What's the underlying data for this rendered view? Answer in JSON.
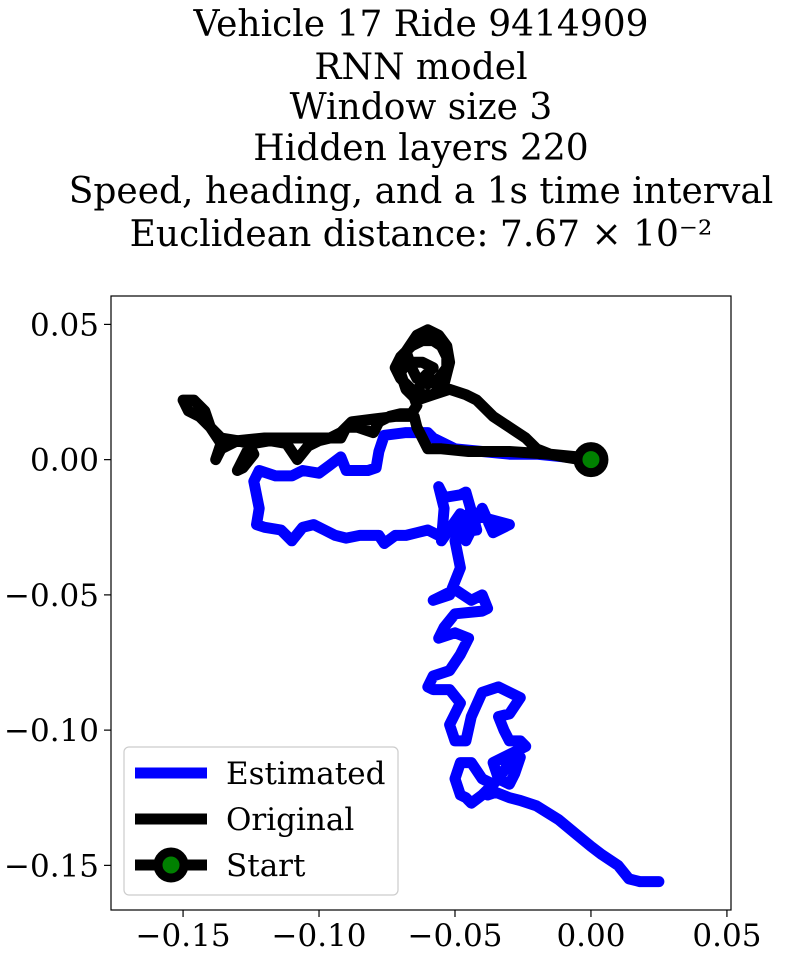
{
  "chart_data": {
    "type": "line",
    "title_lines": [
      "Vehicle 17 Ride 9414909",
      "RNN model",
      "Window size 3",
      "Hidden layers 220",
      "Speed, heading, and a 1s time interval",
      "Euclidean distance: 7.67 × 10⁻²"
    ],
    "xlabel": "",
    "ylabel": "",
    "xlim": [
      -0.1765,
      0.0515
    ],
    "ylim": [
      -0.1665,
      0.0605
    ],
    "xticks": [
      -0.15,
      -0.1,
      -0.05,
      0.0,
      0.05
    ],
    "xtick_labels": [
      "−0.15",
      "−0.10",
      "−0.05",
      "0.00",
      "0.05"
    ],
    "yticks": [
      0.05,
      0.0,
      -0.05,
      -0.1,
      -0.15
    ],
    "ytick_labels": [
      "0.05",
      "0.00",
      "−0.05",
      "−0.10",
      "−0.15"
    ],
    "grid": false,
    "legend_position": "lower-left",
    "series": [
      {
        "name": "Estimated",
        "color": "#0000ff",
        "points": [
          [
            0.0,
            0.0
          ],
          [
            -0.01,
            0.001
          ],
          [
            -0.02,
            0.002
          ],
          [
            -0.03,
            0.002
          ],
          [
            -0.04,
            0.003
          ],
          [
            -0.05,
            0.004
          ],
          [
            -0.058,
            0.008
          ],
          [
            -0.06,
            0.01
          ],
          [
            -0.068,
            0.01
          ],
          [
            -0.076,
            0.009
          ],
          [
            -0.078,
            0.003
          ],
          [
            -0.079,
            -0.003
          ],
          [
            -0.082,
            -0.004
          ],
          [
            -0.09,
            -0.004
          ],
          [
            -0.092,
            0.001
          ],
          [
            -0.096,
            -0.002
          ],
          [
            -0.1,
            -0.005
          ],
          [
            -0.106,
            -0.004
          ],
          [
            -0.11,
            -0.006
          ],
          [
            -0.116,
            -0.006
          ],
          [
            -0.122,
            -0.004
          ],
          [
            -0.124,
            -0.008
          ],
          [
            -0.122,
            -0.018
          ],
          [
            -0.123,
            -0.024
          ],
          [
            -0.12,
            -0.025
          ],
          [
            -0.114,
            -0.026
          ],
          [
            -0.11,
            -0.03
          ],
          [
            -0.106,
            -0.025
          ],
          [
            -0.102,
            -0.024
          ],
          [
            -0.098,
            -0.026
          ],
          [
            -0.094,
            -0.028
          ],
          [
            -0.09,
            -0.029
          ],
          [
            -0.085,
            -0.028
          ],
          [
            -0.078,
            -0.028
          ],
          [
            -0.076,
            -0.031
          ],
          [
            -0.072,
            -0.028
          ],
          [
            -0.068,
            -0.028
          ],
          [
            -0.064,
            -0.027
          ],
          [
            -0.06,
            -0.026
          ],
          [
            -0.056,
            -0.028
          ],
          [
            -0.052,
            -0.026
          ],
          [
            -0.048,
            -0.027
          ],
          [
            -0.042,
            -0.026
          ],
          [
            -0.046,
            -0.012
          ],
          [
            -0.048,
            -0.013
          ],
          [
            -0.054,
            -0.014
          ],
          [
            -0.056,
            -0.01
          ],
          [
            -0.054,
            -0.018
          ],
          [
            -0.055,
            -0.03
          ],
          [
            -0.048,
            -0.02
          ],
          [
            -0.046,
            -0.03
          ],
          [
            -0.04,
            -0.018
          ],
          [
            -0.036,
            -0.027
          ],
          [
            -0.03,
            -0.024
          ],
          [
            -0.045,
            -0.02
          ],
          [
            -0.05,
            -0.03
          ],
          [
            -0.048,
            -0.04
          ],
          [
            -0.05,
            -0.045
          ],
          [
            -0.052,
            -0.05
          ],
          [
            -0.058,
            -0.052
          ],
          [
            -0.05,
            -0.048
          ],
          [
            -0.044,
            -0.052
          ],
          [
            -0.04,
            -0.05
          ],
          [
            -0.038,
            -0.055
          ],
          [
            -0.04,
            -0.056
          ],
          [
            -0.05,
            -0.057
          ],
          [
            -0.054,
            -0.062
          ],
          [
            -0.056,
            -0.066
          ],
          [
            -0.05,
            -0.064
          ],
          [
            -0.045,
            -0.066
          ],
          [
            -0.048,
            -0.072
          ],
          [
            -0.052,
            -0.078
          ],
          [
            -0.058,
            -0.08
          ],
          [
            -0.06,
            -0.084
          ],
          [
            -0.058,
            -0.085
          ],
          [
            -0.052,
            -0.085
          ],
          [
            -0.048,
            -0.09
          ],
          [
            -0.05,
            -0.094
          ],
          [
            -0.052,
            -0.098
          ],
          [
            -0.05,
            -0.104
          ],
          [
            -0.046,
            -0.104
          ],
          [
            -0.044,
            -0.095
          ],
          [
            -0.04,
            -0.086
          ],
          [
            -0.034,
            -0.084
          ],
          [
            -0.026,
            -0.088
          ],
          [
            -0.03,
            -0.094
          ],
          [
            -0.034,
            -0.095
          ],
          [
            -0.032,
            -0.1
          ],
          [
            -0.03,
            -0.104
          ],
          [
            -0.026,
            -0.104
          ],
          [
            -0.024,
            -0.106
          ],
          [
            -0.028,
            -0.108
          ],
          [
            -0.036,
            -0.112
          ],
          [
            -0.034,
            -0.118
          ],
          [
            -0.03,
            -0.12
          ],
          [
            -0.028,
            -0.116
          ],
          [
            -0.026,
            -0.11
          ],
          [
            -0.03,
            -0.112
          ],
          [
            -0.034,
            -0.118
          ],
          [
            -0.04,
            -0.124
          ],
          [
            -0.044,
            -0.127
          ],
          [
            -0.046,
            -0.125
          ],
          [
            -0.048,
            -0.124
          ],
          [
            -0.05,
            -0.118
          ],
          [
            -0.048,
            -0.112
          ],
          [
            -0.044,
            -0.112
          ],
          [
            -0.04,
            -0.118
          ],
          [
            -0.036,
            -0.12
          ],
          [
            -0.038,
            -0.124
          ],
          [
            -0.035,
            -0.123
          ],
          [
            -0.03,
            -0.125
          ],
          [
            -0.026,
            -0.126
          ],
          [
            -0.02,
            -0.128
          ],
          [
            -0.012,
            -0.133
          ],
          [
            -0.006,
            -0.138
          ],
          [
            0.0,
            -0.143
          ],
          [
            0.004,
            -0.146
          ],
          [
            0.01,
            -0.15
          ],
          [
            0.014,
            -0.155
          ],
          [
            0.018,
            -0.156
          ],
          [
            0.025,
            -0.156
          ]
        ]
      },
      {
        "name": "Original",
        "color": "#000000",
        "points": [
          [
            0.0,
            0.0
          ],
          [
            -0.005,
            0.001
          ],
          [
            -0.015,
            0.002
          ],
          [
            -0.03,
            0.003
          ],
          [
            -0.045,
            0.003
          ],
          [
            -0.055,
            0.004
          ],
          [
            -0.06,
            0.004
          ],
          [
            -0.062,
            0.008
          ],
          [
            -0.064,
            0.012
          ],
          [
            -0.065,
            0.016
          ],
          [
            -0.072,
            0.016
          ],
          [
            -0.08,
            0.015
          ],
          [
            -0.088,
            0.014
          ],
          [
            -0.092,
            0.01
          ],
          [
            -0.096,
            0.008
          ],
          [
            -0.1,
            0.007
          ],
          [
            -0.104,
            0.005
          ],
          [
            -0.108,
            0.0
          ],
          [
            -0.112,
            0.006
          ],
          [
            -0.118,
            0.007
          ],
          [
            -0.124,
            0.006
          ],
          [
            -0.126,
            0.004
          ],
          [
            -0.128,
            0.0
          ],
          [
            -0.13,
            -0.004
          ],
          [
            -0.128,
            -0.003
          ],
          [
            -0.124,
            0.002
          ],
          [
            -0.126,
            0.006
          ],
          [
            -0.13,
            0.007
          ],
          [
            -0.136,
            0.004
          ],
          [
            -0.138,
            0.0
          ],
          [
            -0.136,
            0.006
          ],
          [
            -0.14,
            0.012
          ],
          [
            -0.144,
            0.016
          ],
          [
            -0.148,
            0.018
          ],
          [
            -0.15,
            0.022
          ],
          [
            -0.146,
            0.022
          ],
          [
            -0.142,
            0.018
          ],
          [
            -0.14,
            0.012
          ],
          [
            -0.136,
            0.008
          ],
          [
            -0.13,
            0.007
          ],
          [
            -0.12,
            0.008
          ],
          [
            -0.11,
            0.008
          ],
          [
            -0.1,
            0.008
          ],
          [
            -0.092,
            0.008
          ],
          [
            -0.09,
            0.012
          ],
          [
            -0.086,
            0.012
          ],
          [
            -0.08,
            0.01
          ],
          [
            -0.078,
            0.014
          ],
          [
            -0.074,
            0.016
          ],
          [
            -0.07,
            0.017
          ],
          [
            -0.066,
            0.017
          ],
          [
            -0.064,
            0.02
          ],
          [
            -0.066,
            0.026
          ],
          [
            -0.07,
            0.03
          ],
          [
            -0.072,
            0.034
          ],
          [
            -0.07,
            0.038
          ],
          [
            -0.066,
            0.042
          ],
          [
            -0.062,
            0.044
          ],
          [
            -0.058,
            0.044
          ],
          [
            -0.055,
            0.042
          ],
          [
            -0.053,
            0.038
          ],
          [
            -0.053,
            0.034
          ],
          [
            -0.056,
            0.03
          ],
          [
            -0.06,
            0.028
          ],
          [
            -0.064,
            0.03
          ],
          [
            -0.066,
            0.034
          ],
          [
            -0.068,
            0.04
          ],
          [
            -0.064,
            0.046
          ],
          [
            -0.06,
            0.048
          ],
          [
            -0.056,
            0.046
          ],
          [
            -0.053,
            0.042
          ],
          [
            -0.052,
            0.036
          ],
          [
            -0.054,
            0.028
          ],
          [
            -0.058,
            0.024
          ],
          [
            -0.064,
            0.022
          ],
          [
            -0.068,
            0.026
          ],
          [
            -0.07,
            0.032
          ],
          [
            -0.068,
            0.036
          ],
          [
            -0.062,
            0.036
          ],
          [
            -0.058,
            0.034
          ],
          [
            -0.062,
            0.03
          ],
          [
            -0.064,
            0.024
          ],
          [
            -0.058,
            0.024
          ],
          [
            -0.052,
            0.026
          ],
          [
            -0.046,
            0.024
          ],
          [
            -0.042,
            0.022
          ],
          [
            -0.036,
            0.016
          ],
          [
            -0.03,
            0.012
          ],
          [
            -0.024,
            0.008
          ],
          [
            -0.02,
            0.004
          ],
          [
            -0.015,
            0.002
          ],
          [
            -0.01,
            0.001
          ],
          [
            -0.004,
            0.0
          ],
          [
            0.0,
            0.0
          ]
        ]
      }
    ],
    "start_marker": {
      "name": "Start",
      "point": [
        0.0,
        0.0
      ],
      "edge_color": "#000000",
      "fill_color": "#008000"
    }
  }
}
